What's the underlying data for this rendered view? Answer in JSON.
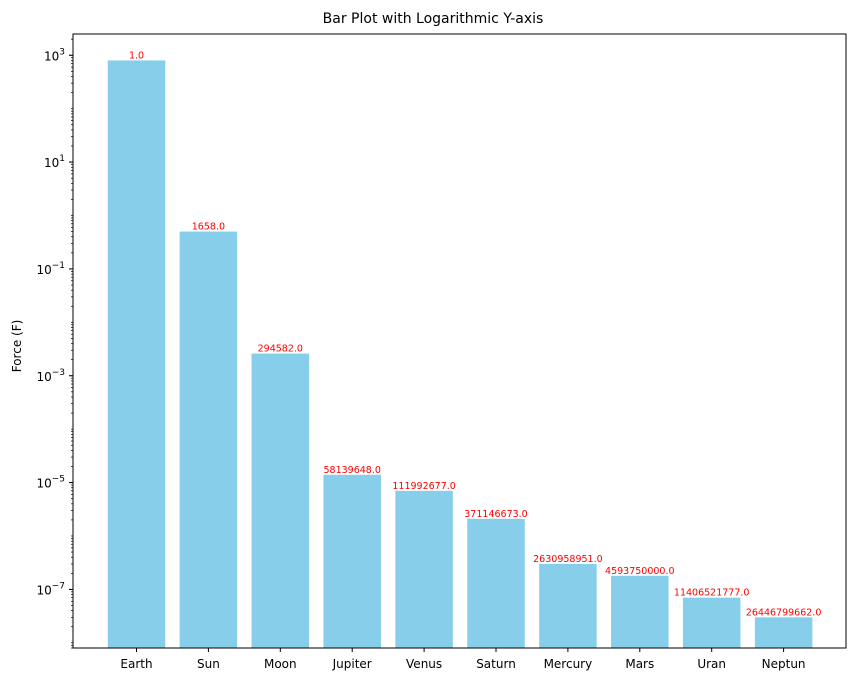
{
  "chart_data": {
    "type": "bar",
    "title": "Bar Plot with Logarithmic Y-axis",
    "xlabel": "",
    "ylabel": "Force (F)",
    "yscale": "log",
    "ylim": [
      8e-09,
      2500
    ],
    "yticks": [
      {
        "value": 1e-07,
        "base": "10",
        "exp": "−7"
      },
      {
        "value": 1e-05,
        "base": "10",
        "exp": "−5"
      },
      {
        "value": 0.001,
        "base": "10",
        "exp": "−3"
      },
      {
        "value": 0.1,
        "base": "10",
        "exp": "−1"
      },
      {
        "value": 10,
        "base": "10",
        "exp": "1"
      },
      {
        "value": 1000,
        "base": "10",
        "exp": "3"
      }
    ],
    "categories": [
      "Earth",
      "Sun",
      "Moon",
      "Jupiter",
      "Venus",
      "Saturn",
      "Mercury",
      "Mars",
      "Uran",
      "Neptun"
    ],
    "values": [
      800,
      0.5,
      0.0026,
      1.4e-05,
      7e-06,
      2.1e-06,
      3e-07,
      1.8e-07,
      7e-08,
      3e-08
    ],
    "data_labels": [
      "1.0",
      "1658.0",
      "294582.0",
      "58139648.0",
      "111992677.0",
      "371146673.0",
      "2630958951.0",
      "4593750000.0",
      "11406521777.0",
      "26446799662.0"
    ],
    "bar_color": "#87CEEB",
    "label_color": "#FF0000",
    "grid": false,
    "legend": false
  }
}
